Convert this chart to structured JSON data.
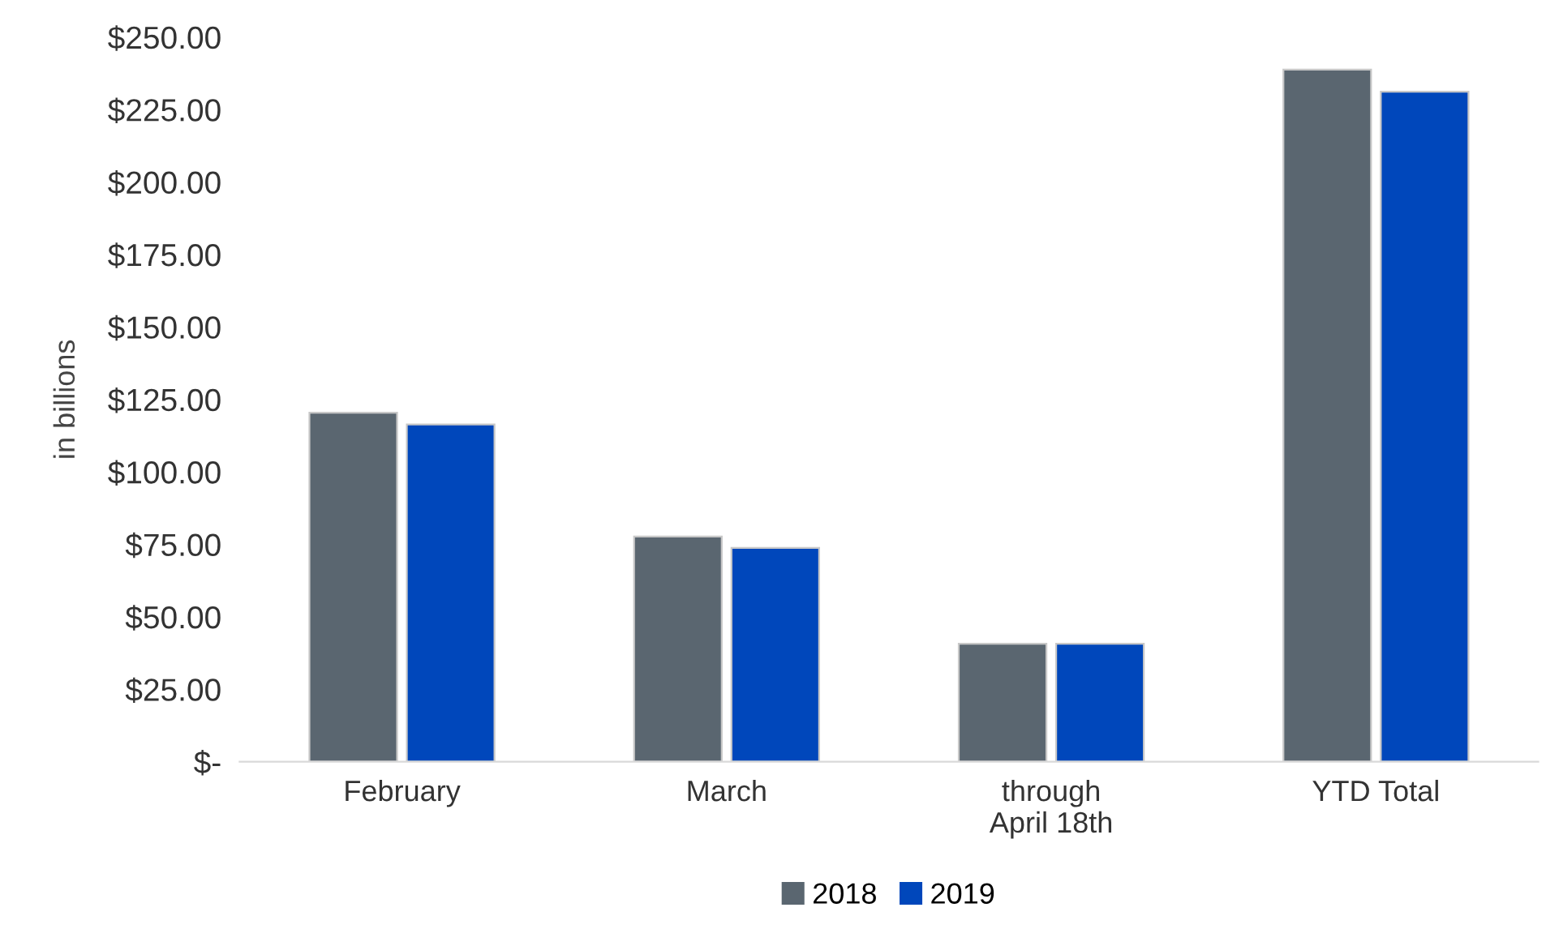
{
  "chart_data": {
    "type": "bar",
    "ylabel": "in billions",
    "categories": [
      "February",
      "March",
      "through\nApril 18th",
      "YTD Total"
    ],
    "series": [
      {
        "name": "2018",
        "color": "#5a6670",
        "values": [
          120.4,
          77.7,
          40.7,
          238.8
        ]
      },
      {
        "name": "2019",
        "color": "#0047bb",
        "values": [
          116.4,
          73.8,
          40.7,
          231.2
        ]
      }
    ],
    "ylim": [
      0,
      250
    ],
    "yticks": [
      {
        "value": 0,
        "label": "$-"
      },
      {
        "value": 25,
        "label": "$25.00"
      },
      {
        "value": 50,
        "label": "$50.00"
      },
      {
        "value": 75,
        "label": "$75.00"
      },
      {
        "value": 100,
        "label": "$100.00"
      },
      {
        "value": 125,
        "label": "$125.00"
      },
      {
        "value": 150,
        "label": "$150.00"
      },
      {
        "value": 175,
        "label": "$175.00"
      },
      {
        "value": 200,
        "label": "$200.00"
      },
      {
        "value": 225,
        "label": "$225.00"
      },
      {
        "value": 250,
        "label": "$250.00"
      }
    ],
    "grid": false,
    "legend": "bottom"
  }
}
